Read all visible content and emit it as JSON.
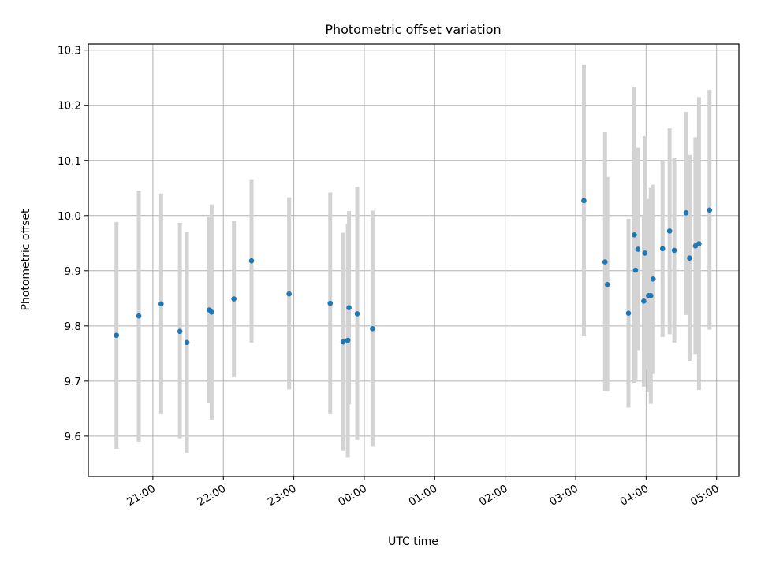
{
  "chart_data": {
    "type": "scatter",
    "title": "Photometric offset variation",
    "xlabel": "UTC time",
    "ylabel": "Photometric offset",
    "x_is_time": true,
    "x_ticks": [
      "21:00",
      "22:00",
      "23:00",
      "00:00",
      "01:00",
      "02:00",
      "03:00",
      "04:00",
      "05:00"
    ],
    "y_ticks": [
      "9.6",
      "9.7",
      "9.8",
      "9.9",
      "10.0",
      "10.1",
      "10.2",
      "10.3"
    ],
    "xlim": [
      "20:05",
      "05:19"
    ],
    "ylim": [
      9.527,
      10.311
    ],
    "grid": true,
    "colors": {
      "point": "#1f77b4",
      "errorbar": "#d3d3d3",
      "grid": "#b0b0b0"
    },
    "points": [
      {
        "t": "20:29",
        "y": 9.783,
        "lo": 9.577,
        "hi": 9.988
      },
      {
        "t": "20:48",
        "y": 9.818,
        "lo": 9.59,
        "hi": 10.045
      },
      {
        "t": "21:07",
        "y": 9.84,
        "lo": 9.64,
        "hi": 10.04
      },
      {
        "t": "21:23",
        "y": 9.79,
        "lo": 9.596,
        "hi": 9.987
      },
      {
        "t": "21:29",
        "y": 9.77,
        "lo": 9.57,
        "hi": 9.97
      },
      {
        "t": "21:48",
        "y": 9.829,
        "lo": 9.66,
        "hi": 9.998
      },
      {
        "t": "21:50",
        "y": 9.825,
        "lo": 9.63,
        "hi": 10.02
      },
      {
        "t": "22:09",
        "y": 9.849,
        "lo": 9.707,
        "hi": 9.99
      },
      {
        "t": "22:24",
        "y": 9.918,
        "lo": 9.77,
        "hi": 10.066
      },
      {
        "t": "22:56",
        "y": 9.858,
        "lo": 9.685,
        "hi": 10.033
      },
      {
        "t": "23:31",
        "y": 9.841,
        "lo": 9.64,
        "hi": 10.042
      },
      {
        "t": "23:42",
        "y": 9.771,
        "lo": 9.573,
        "hi": 9.969
      },
      {
        "t": "23:46",
        "y": 9.774,
        "lo": 9.562,
        "hi": 9.985
      },
      {
        "t": "23:47",
        "y": 9.833,
        "lo": 9.658,
        "hi": 10.008
      },
      {
        "t": "23:54",
        "y": 9.822,
        "lo": 9.593,
        "hi": 10.052
      },
      {
        "t": "00:07",
        "y": 9.795,
        "lo": 9.582,
        "hi": 10.009
      },
      {
        "t": "03:07",
        "y": 10.027,
        "lo": 9.781,
        "hi": 10.274
      },
      {
        "t": "03:25",
        "y": 9.916,
        "lo": 9.682,
        "hi": 10.151
      },
      {
        "t": "03:27",
        "y": 9.875,
        "lo": 9.681,
        "hi": 10.07
      },
      {
        "t": "03:45",
        "y": 9.823,
        "lo": 9.652,
        "hi": 9.994
      },
      {
        "t": "03:50",
        "y": 9.965,
        "lo": 9.697,
        "hi": 10.233
      },
      {
        "t": "03:51",
        "y": 9.901,
        "lo": 9.703,
        "hi": 10.098
      },
      {
        "t": "03:53",
        "y": 9.939,
        "lo": 9.755,
        "hi": 10.123
      },
      {
        "t": "03:58",
        "y": 9.845,
        "lo": 9.69,
        "hi": 10.0
      },
      {
        "t": "03:59",
        "y": 9.932,
        "lo": 9.72,
        "hi": 10.144
      },
      {
        "t": "04:02",
        "y": 9.855,
        "lo": 9.68,
        "hi": 10.03
      },
      {
        "t": "04:04",
        "y": 9.855,
        "lo": 9.659,
        "hi": 10.05
      },
      {
        "t": "04:06",
        "y": 9.885,
        "lo": 9.713,
        "hi": 10.056
      },
      {
        "t": "04:14",
        "y": 9.94,
        "lo": 9.78,
        "hi": 10.1
      },
      {
        "t": "04:20",
        "y": 9.972,
        "lo": 9.785,
        "hi": 10.158
      },
      {
        "t": "04:24",
        "y": 9.937,
        "lo": 9.77,
        "hi": 10.105
      },
      {
        "t": "04:34",
        "y": 10.005,
        "lo": 9.82,
        "hi": 10.188
      },
      {
        "t": "04:37",
        "y": 9.923,
        "lo": 9.737,
        "hi": 10.11
      },
      {
        "t": "04:42",
        "y": 9.945,
        "lo": 9.748,
        "hi": 10.142
      },
      {
        "t": "04:45",
        "y": 9.949,
        "lo": 9.684,
        "hi": 10.215
      },
      {
        "t": "04:54",
        "y": 10.01,
        "lo": 9.793,
        "hi": 10.228
      }
    ]
  }
}
